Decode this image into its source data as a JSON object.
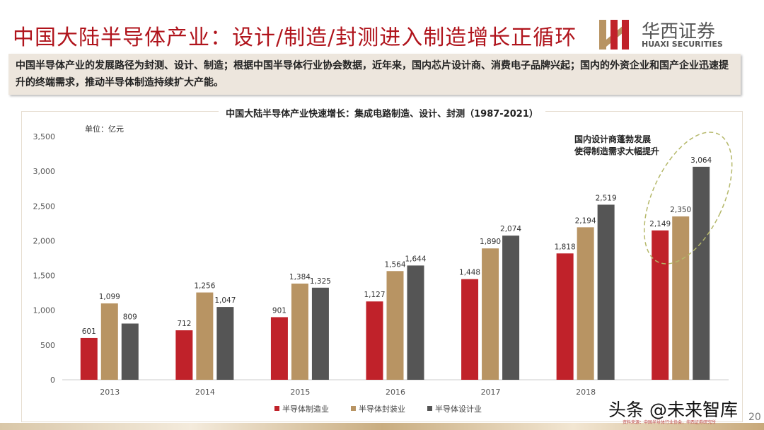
{
  "header": {
    "title": "中国大陆半导体产业：设计/制造/封测进入制造增长正循环",
    "logo_cn": "华西证券",
    "logo_en": "HUAXI SECURITIES"
  },
  "summary": "中国半导体产业的发展路径为封测、设计、制造；根据中国半导体行业协会数据，近年来，国内芯片设计商、消费电子品牌兴起；国内的外资企业和国产企业迅速提升的终端需求，推动半导体制造持续扩大产能。",
  "chart_data": {
    "type": "bar",
    "title": "中国大陆半导体产业快速增长：集成电路制造、设计、封测（1987-2021）",
    "unit_label": "单位：亿元",
    "categories": [
      "2013",
      "2014",
      "2015",
      "2016",
      "2017",
      "2018",
      ""
    ],
    "series": [
      {
        "name": "半导体制造业",
        "color": "#c0222a",
        "values": [
          601,
          712,
          901,
          1127,
          1448,
          1818,
          2149
        ]
      },
      {
        "name": "半导体封装业",
        "color": "#b89463",
        "values": [
          1099,
          1256,
          1384,
          1564,
          1890,
          2194,
          2350
        ]
      },
      {
        "name": "半导体设计业",
        "color": "#555555",
        "values": [
          809,
          1047,
          1325,
          1644,
          2074,
          2519,
          3064
        ]
      }
    ],
    "ylim": [
      0,
      3500
    ],
    "yticks": [
      0,
      500,
      1000,
      1500,
      2000,
      2500,
      3000,
      3500
    ],
    "grid": false,
    "legend": "bottom",
    "annotation": "国内设计商蓬勃发展\n使得制造需求大幅提升"
  },
  "footer": {
    "watermark": "头条 @未来智库",
    "source": "资料来源：中国半导体行业协会，华西证券研究所",
    "page": "20"
  }
}
